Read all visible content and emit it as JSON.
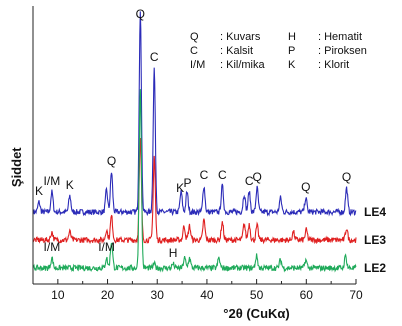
{
  "chart_data": {
    "type": "line",
    "xlabel": "°2θ (CuKα)",
    "ylabel": "Şiddet",
    "xlim": [
      5,
      70
    ],
    "x_ticks": [
      10,
      20,
      30,
      40,
      50,
      60,
      70
    ],
    "grid": false,
    "legend_position": "top-right",
    "legend": [
      {
        "symbol": "Q",
        "name": ": Kuvars"
      },
      {
        "symbol": "H",
        "name": ": Hematit"
      },
      {
        "symbol": "C",
        "name": ": Kalsit"
      },
      {
        "symbol": "P",
        "name": ": Piroksen"
      },
      {
        "symbol": "I/M",
        "name": ": Kil/mika"
      },
      {
        "symbol": "K",
        "name": ": Klorit"
      }
    ],
    "series": [
      {
        "name": "LE4",
        "color": "#2b2bb8",
        "baseline": 0.34,
        "peaks": [
          [
            6.2,
            0.05
          ],
          [
            8.8,
            0.1
          ],
          [
            12.4,
            0.08
          ],
          [
            19.8,
            0.11
          ],
          [
            20.8,
            0.2
          ],
          [
            26.6,
            1.0
          ],
          [
            29.4,
            0.72
          ],
          [
            34.8,
            0.1
          ],
          [
            36.0,
            0.1
          ],
          [
            39.4,
            0.13
          ],
          [
            43.1,
            0.13
          ],
          [
            47.5,
            0.09
          ],
          [
            48.5,
            0.1
          ],
          [
            50.1,
            0.12
          ],
          [
            54.8,
            0.07
          ],
          [
            59.9,
            0.07
          ],
          [
            68.1,
            0.12
          ]
        ]
      },
      {
        "name": "LE3",
        "color": "#e02020",
        "baseline": 0.2,
        "peaks": [
          [
            8.8,
            0.04
          ],
          [
            12.4,
            0.04
          ],
          [
            19.8,
            0.05
          ],
          [
            20.8,
            0.12
          ],
          [
            26.6,
            0.5
          ],
          [
            29.4,
            0.42
          ],
          [
            35.4,
            0.07
          ],
          [
            36.5,
            0.07
          ],
          [
            39.4,
            0.1
          ],
          [
            43.1,
            0.09
          ],
          [
            47.5,
            0.08
          ],
          [
            48.5,
            0.08
          ],
          [
            50.1,
            0.07
          ],
          [
            57.4,
            0.04
          ],
          [
            60.0,
            0.05
          ],
          [
            68.1,
            0.06
          ]
        ]
      },
      {
        "name": "LE2",
        "color": "#1faa5a",
        "baseline": 0.06,
        "peaks": [
          [
            8.8,
            0.05
          ],
          [
            19.8,
            0.05
          ],
          [
            20.8,
            0.13
          ],
          [
            26.6,
            0.9
          ],
          [
            29.4,
            0.02
          ],
          [
            33.2,
            0.02
          ],
          [
            35.5,
            0.05
          ],
          [
            36.5,
            0.05
          ],
          [
            42.4,
            0.05
          ],
          [
            50.0,
            0.06
          ],
          [
            54.8,
            0.04
          ],
          [
            59.9,
            0.04
          ],
          [
            67.9,
            0.06
          ]
        ]
      }
    ],
    "peak_labels": [
      {
        "text": "K",
        "x": 6.2,
        "series": "LE4"
      },
      {
        "text": "I/M",
        "x": 8.8,
        "series": "LE4"
      },
      {
        "text": "K",
        "x": 12.4,
        "series": "LE4"
      },
      {
        "text": "Q",
        "x": 20.8,
        "series": "LE4"
      },
      {
        "text": "Q",
        "x": 26.6,
        "series": "LE4"
      },
      {
        "text": "C",
        "x": 29.4,
        "series": "LE4"
      },
      {
        "text": "K",
        "x": 34.6,
        "series": "LE4"
      },
      {
        "text": "P",
        "x": 36.1,
        "series": "LE4"
      },
      {
        "text": "C",
        "x": 39.4,
        "series": "LE4"
      },
      {
        "text": "C",
        "x": 43.1,
        "series": "LE4"
      },
      {
        "text": "C",
        "x": 48.5,
        "series": "LE4"
      },
      {
        "text": "Q",
        "x": 50.1,
        "series": "LE4"
      },
      {
        "text": "Q",
        "x": 59.9,
        "series": "LE4"
      },
      {
        "text": "Q",
        "x": 68.1,
        "series": "LE4"
      },
      {
        "text": "I/M",
        "x": 8.8,
        "series": "LE2"
      },
      {
        "text": "I/M",
        "x": 19.8,
        "series": "LE2"
      },
      {
        "text": "H",
        "x": 33.2,
        "series": "LE2"
      }
    ]
  }
}
